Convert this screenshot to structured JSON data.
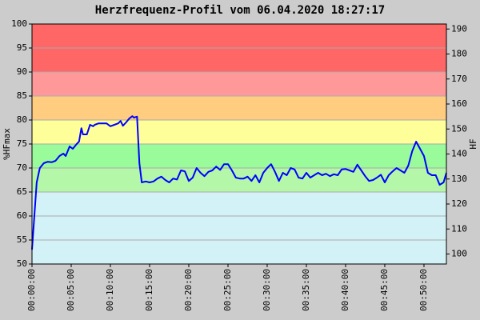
{
  "chart_data": {
    "type": "line",
    "title": "Herzfrequenz-Profil vom 06.04.2020 18:27:17",
    "y_label": "%HFmax",
    "y2_label": "HF",
    "ylim": [
      50,
      100
    ],
    "yticks": [
      50,
      55,
      60,
      65,
      70,
      75,
      80,
      85,
      90,
      95,
      100
    ],
    "y2lim": [
      96,
      192
    ],
    "y2ticks": [
      100,
      110,
      120,
      130,
      140,
      150,
      160,
      170,
      180,
      190
    ],
    "xlim": [
      0,
      52.86
    ],
    "xticks": [
      {
        "value": 0,
        "label": "00:00:00"
      },
      {
        "value": 5,
        "label": "00:05:00"
      },
      {
        "value": 10,
        "label": "00:10:00"
      },
      {
        "value": 15,
        "label": "00:15:00"
      },
      {
        "value": 20,
        "label": "00:20:00"
      },
      {
        "value": 25,
        "label": "00:25:00"
      },
      {
        "value": 30,
        "label": "00:30:00"
      },
      {
        "value": 35,
        "label": "00:35:00"
      },
      {
        "value": 40,
        "label": "00:40:00"
      },
      {
        "value": 45,
        "label": "00:45:00"
      },
      {
        "value": 50,
        "label": "00:50:00"
      }
    ],
    "grid": true,
    "zones": [
      {
        "from": 50,
        "to": 65,
        "color": "#d2f2f8"
      },
      {
        "from": 65,
        "to": 70,
        "color": "#b4f7a8"
      },
      {
        "from": 70,
        "to": 75,
        "color": "#99fb99"
      },
      {
        "from": 75,
        "to": 80,
        "color": "#ffff99"
      },
      {
        "from": 80,
        "to": 85,
        "color": "#ffcc80"
      },
      {
        "from": 85,
        "to": 90,
        "color": "#ff9999"
      },
      {
        "from": 90,
        "to": 100,
        "color": "#ff6666"
      }
    ],
    "series": [
      {
        "color": "#0000ff",
        "x": [
          0,
          0.3,
          0.6,
          1,
          1.5,
          2,
          2.5,
          3,
          3.5,
          4,
          4.3,
          4.8,
          5.2,
          5.7,
          6,
          6.3,
          6.5,
          7,
          7.4,
          7.8,
          8,
          8.5,
          9,
          9.5,
          10,
          10.5,
          11,
          11.3,
          11.6,
          12,
          12.4,
          12.8,
          13,
          13.4,
          13.7,
          14,
          14.5,
          15,
          15.5,
          16,
          16.5,
          17,
          17.5,
          18,
          18.5,
          19,
          19.5,
          20,
          20.5,
          21,
          21.5,
          22,
          22.5,
          23,
          23.5,
          24,
          24.5,
          25,
          25.5,
          26,
          26.5,
          27,
          27.5,
          28,
          28.5,
          29,
          29.5,
          30,
          30.5,
          31,
          31.5,
          32,
          32.5,
          33,
          33.5,
          34,
          34.5,
          35,
          35.5,
          36,
          36.5,
          37,
          37.5,
          38,
          38.5,
          39,
          39.5,
          40,
          40.5,
          41,
          41.5,
          42,
          42.5,
          43,
          43.5,
          44,
          44.5,
          45,
          45.5,
          46,
          46.5,
          47,
          47.5,
          48,
          48.5,
          49,
          49.5,
          50,
          50.5,
          51,
          51.5,
          52,
          52.5,
          52.86
        ],
        "values": [
          53,
          60,
          67,
          70,
          71,
          71.3,
          71.2,
          71.5,
          72.5,
          73,
          72.5,
          74.5,
          74,
          75,
          75.5,
          78.3,
          77,
          77,
          79,
          78.7,
          79,
          79.3,
          79.3,
          79.3,
          78.7,
          79,
          79.3,
          79.8,
          78.8,
          79.5,
          80.3,
          80.8,
          80.5,
          80.7,
          71,
          67,
          67.2,
          67,
          67.2,
          67.8,
          68.2,
          67.5,
          67,
          67.8,
          67.6,
          69.5,
          69.3,
          67.3,
          68,
          70,
          69,
          68.3,
          69.2,
          69.5,
          70.3,
          69.6,
          70.8,
          70.8,
          69.5,
          68,
          67.8,
          67.8,
          68.2,
          67.3,
          68.5,
          67,
          69,
          70,
          70.8,
          69.2,
          67.3,
          69,
          68.5,
          70,
          69.7,
          68,
          67.8,
          69,
          68,
          68.5,
          69,
          68.5,
          68.8,
          68.3,
          68.7,
          68.5,
          69.7,
          69.8,
          69.5,
          69.2,
          70.7,
          69.5,
          68.3,
          67.3,
          67.5,
          68,
          68.6,
          67,
          68.5,
          69.3,
          70,
          69.5,
          69,
          70.5,
          73.5,
          75.5,
          74,
          72.5,
          69,
          68.5,
          68.5,
          66.5,
          67,
          69
        ]
      }
    ]
  }
}
